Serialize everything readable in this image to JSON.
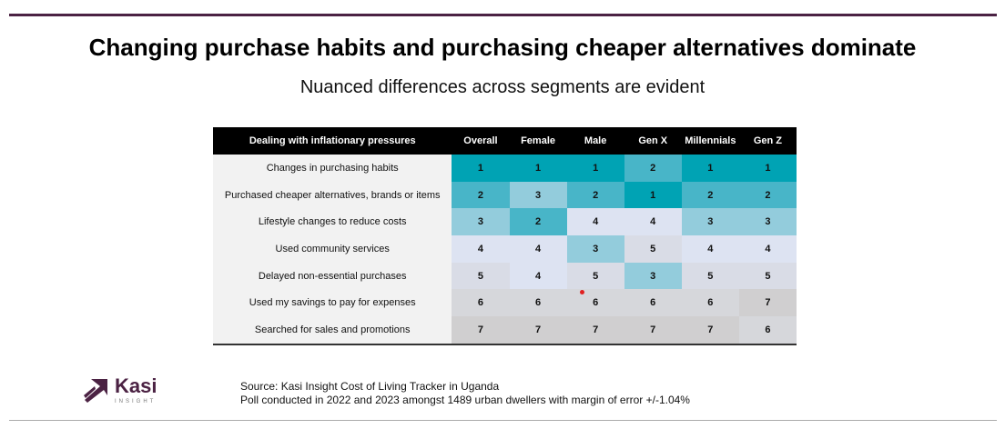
{
  "title": "Changing purchase habits and purchasing cheaper alternatives dominate",
  "subtitle": "Nuanced differences across segments are evident",
  "table": {
    "headers": [
      "Dealing with inflationary pressures",
      "Overall",
      "Female",
      "Male",
      "Gen X",
      "Millennials",
      "Gen Z"
    ],
    "rows": [
      {
        "label": "Changes in purchasing habits",
        "values": [
          1,
          1,
          1,
          2,
          1,
          1
        ]
      },
      {
        "label": "Purchased cheaper alternatives, brands or items",
        "values": [
          2,
          3,
          2,
          1,
          2,
          2
        ]
      },
      {
        "label": "Lifestyle changes to reduce costs",
        "values": [
          3,
          2,
          4,
          4,
          3,
          3
        ]
      },
      {
        "label": "Used community services",
        "values": [
          4,
          4,
          3,
          5,
          4,
          4
        ]
      },
      {
        "label": "Delayed non-essential purchases",
        "values": [
          5,
          4,
          5,
          3,
          5,
          5
        ]
      },
      {
        "label": "Used my savings to pay for expenses",
        "values": [
          6,
          6,
          6,
          6,
          6,
          7
        ]
      },
      {
        "label": "Searched for sales and promotions",
        "values": [
          7,
          7,
          7,
          7,
          7,
          6
        ]
      }
    ],
    "rank_colors": {
      "1": "#00a3b4",
      "2": "#48b5c8",
      "3": "#93ccdc",
      "4": "#dde3f2",
      "5": "#d9dce6",
      "6": "#d6d7db",
      "7": "#d0cfd0"
    }
  },
  "logo": {
    "name": "Kasi",
    "tagline": "INSIGHT"
  },
  "source": {
    "line1": "Source: Kasi Insight Cost of Living Tracker in Uganda",
    "line2": "Poll conducted  in  2022 and 2023 amongst 1489 urban dwellers with margin of error +/-1.04%"
  }
}
